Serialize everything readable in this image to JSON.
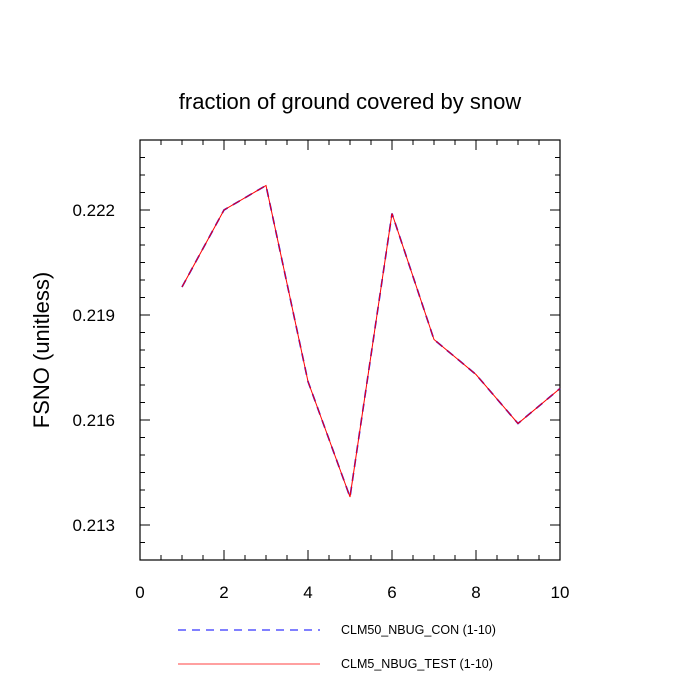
{
  "chart_data": {
    "type": "line",
    "title": "fraction of ground covered by snow",
    "xlabel": "",
    "ylabel": "FSNO  (unitless)",
    "xlim": [
      0,
      10
    ],
    "ylim": [
      0.212,
      0.224
    ],
    "x_ticks": [
      0,
      2,
      4,
      6,
      8,
      10
    ],
    "x_tick_labels": [
      "0",
      "2",
      "4",
      "6",
      "8",
      "10"
    ],
    "y_ticks": [
      0.213,
      0.216,
      0.219,
      0.222
    ],
    "y_tick_labels": [
      "0.213",
      "0.216",
      "0.219",
      "0.222"
    ],
    "x": [
      1,
      2,
      3,
      4,
      5,
      6,
      7,
      8,
      9,
      10
    ],
    "series": [
      {
        "name": "CLM50_NBUG_CON (1-10)",
        "color": "#0000ff",
        "dash": "dashed",
        "values": [
          0.2198,
          0.222,
          0.2227,
          0.2171,
          0.2138,
          0.2219,
          0.2183,
          0.2173,
          0.2159,
          0.2169
        ]
      },
      {
        "name": "CLM5_NBUG_TEST (1-10)",
        "color": "#ff0000",
        "dash": "solid",
        "values": [
          0.2198,
          0.222,
          0.2227,
          0.2171,
          0.2138,
          0.2219,
          0.2183,
          0.2173,
          0.2159,
          0.2169
        ]
      }
    ],
    "grid": false,
    "legend_position": "bottom"
  }
}
